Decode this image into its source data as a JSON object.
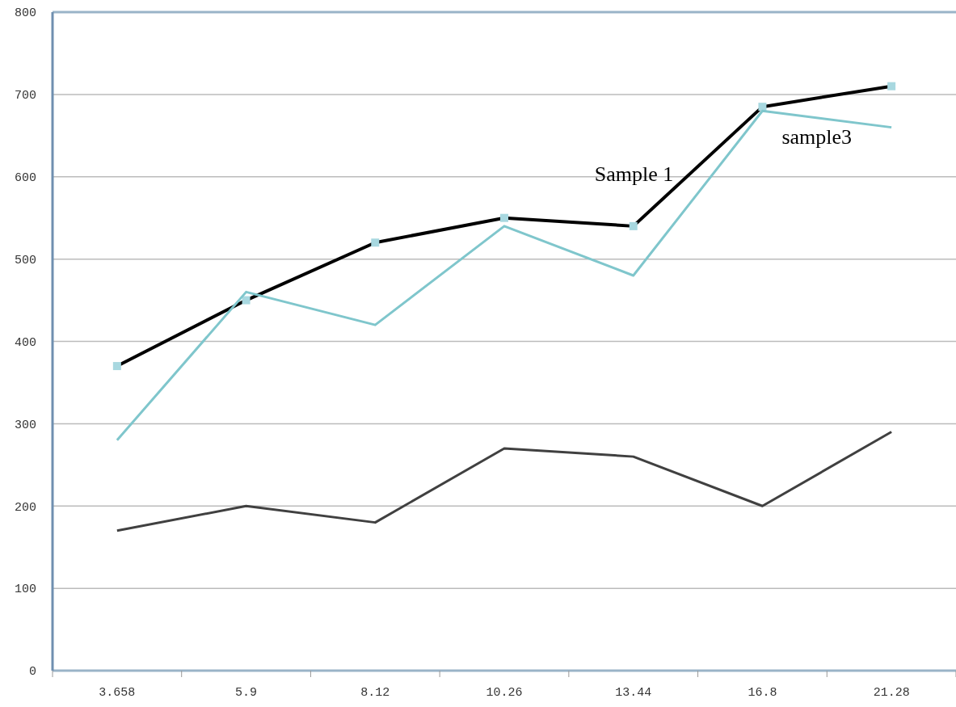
{
  "chart_data": {
    "type": "line",
    "categories": [
      "3.658",
      "5.9",
      "8.12",
      "10.26",
      "13.44",
      "16.8",
      "21.28"
    ],
    "series": [
      {
        "name": "Sample 1",
        "color": "#000000",
        "marker": "square",
        "values": [
          370,
          450,
          520,
          550,
          540,
          685,
          710
        ]
      },
      {
        "name": "sample3",
        "color": "#7fc6cc",
        "marker": "none",
        "values": [
          280,
          460,
          420,
          540,
          480,
          680,
          660
        ]
      },
      {
        "color": "#404040",
        "marker": "none",
        "values": [
          170,
          200,
          180,
          270,
          260,
          200,
          290
        ]
      }
    ],
    "ylim": [
      0,
      800
    ],
    "yticks": [
      0,
      100,
      200,
      300,
      400,
      500,
      600,
      700,
      800
    ],
    "grid": "y"
  }
}
